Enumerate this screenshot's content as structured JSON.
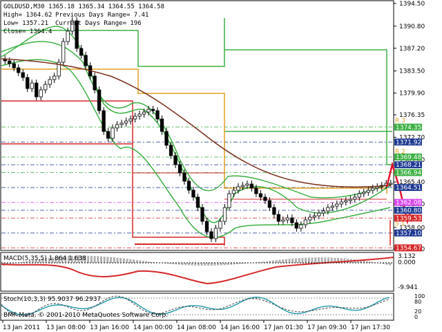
{
  "header": {
    "symbol_line": "GOLDUSD,M30   1365.18  1365.34  1364.55  1364.58",
    "high": "High= 1364.62",
    "low": "Low= 1357.21",
    "close": "Close= 1364.4",
    "prev_range": "Previous Days Range= 7.41",
    "curr_range": "Current Days Range= 196"
  },
  "price_axis": {
    "ticks": [
      "1394.50",
      "1390.80",
      "1387.20",
      "1383.50",
      "1379.90",
      "1376.35",
      "1372.70",
      "1369.00",
      "1365.40",
      "1361.80",
      "1358.00",
      "1354.50"
    ],
    "badges": [
      {
        "label": "1374.35",
        "color": "#3cb043"
      },
      {
        "label": "1371.92",
        "color": "#1f3a93"
      },
      {
        "label": "1369.48",
        "color": "#3cb043"
      },
      {
        "label": "1368.21",
        "color": "#1f3a93"
      },
      {
        "label": "1366.94",
        "color": "#3cb043"
      },
      {
        "label": "1364.51",
        "color": "#1f3a93"
      },
      {
        "label": "1362.08",
        "color": "#d946ef"
      },
      {
        "label": "1360.80",
        "color": "#1f3a93"
      },
      {
        "label": "1359.53",
        "color": "#d62728"
      },
      {
        "label": "1357.10",
        "color": "#1f3a93"
      },
      {
        "label": "1354.67",
        "color": "#d62728"
      }
    ]
  },
  "pivot_labels": [
    "R 3",
    "R 2",
    "R 1",
    "S 1"
  ],
  "macd": {
    "label": "MACD(5,35,5)  1.864  1.638",
    "ticks": [
      "3.132",
      "0.000",
      "-9.941"
    ]
  },
  "stoch": {
    "label": "Stoch(10,3,3)  95.9037  96.2937",
    "ticks": [
      "100",
      "80",
      "20",
      "0"
    ]
  },
  "time_axis": [
    "13 Jan 2011",
    "13 Jan 08:00",
    "13 Jan 16:00",
    "14 Jan 00:00",
    "14 Jan 08:00",
    "14 Jan 16:00",
    "17 Jan 01:30",
    "17 Jan 09:30",
    "17 Jan 17:30"
  ],
  "watermark": "BMF-Meta, © 2001-2010 MetaQuotes Software Corp.",
  "colors": {
    "pivot_r": "#e0a020",
    "pivot_r_green": "#3cb043",
    "support": "#d62728",
    "bollinger": "#3cb043",
    "ma": "#7a2e1a",
    "forecast": "#e0102c",
    "stoch_main": "#2a9db0"
  }
}
